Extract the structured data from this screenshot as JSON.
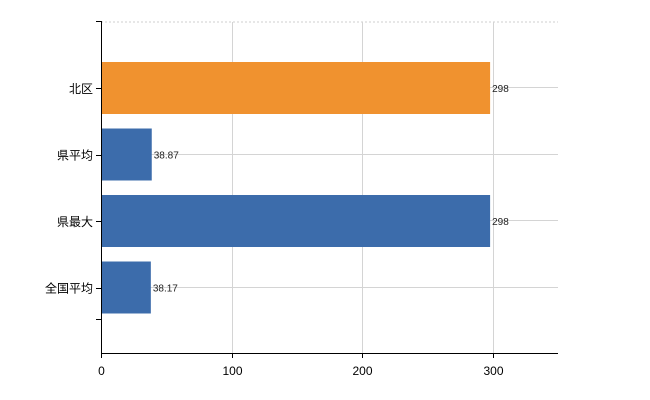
{
  "chart_data": {
    "type": "bar",
    "orientation": "horizontal",
    "categories": [
      "北区",
      "県平均",
      "県最大",
      "全国平均"
    ],
    "values": [
      298,
      38.87,
      298,
      38.17
    ],
    "data_labels": [
      "298",
      "38.87",
      "298",
      "38.17"
    ],
    "colors": [
      "#F0922F",
      "#3C6CAB",
      "#3C6CAB",
      "#3C6CAB"
    ],
    "xlim": [
      0,
      350
    ],
    "xticks": [
      0,
      100,
      200,
      300
    ],
    "xtick_labels": [
      "0",
      "100",
      "200",
      "300"
    ],
    "title": "",
    "xlabel": "",
    "ylabel": "",
    "grid": true,
    "legend": "none"
  }
}
